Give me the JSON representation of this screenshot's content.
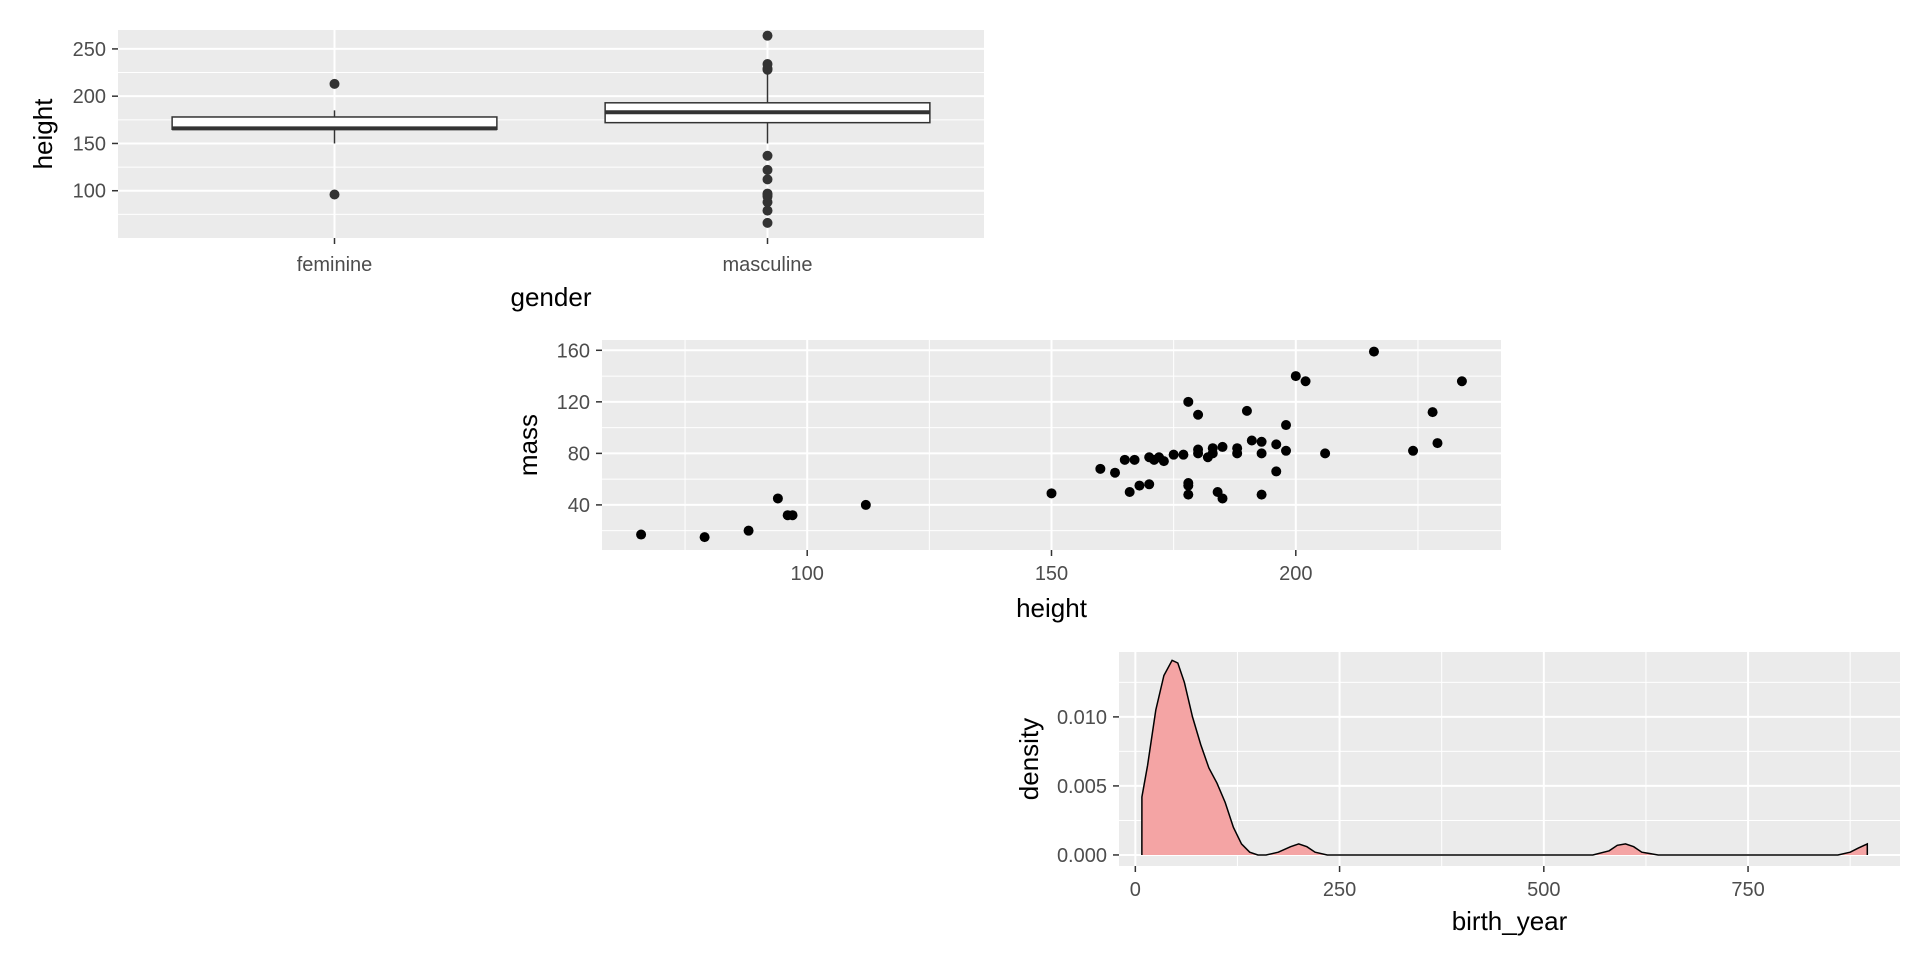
{
  "chart_data": [
    {
      "type": "boxplot",
      "xlabel": "gender",
      "ylabel": "height",
      "categories": [
        "feminine",
        "masculine"
      ],
      "ylim": [
        50,
        270
      ],
      "y_ticks": [
        100,
        150,
        200,
        250
      ],
      "boxes": [
        {
          "category": "feminine",
          "lower_whisker": 150,
          "q1": 165,
          "median": 166,
          "q3": 178,
          "upper_whisker": 185,
          "outliers": [
            96,
            213
          ]
        },
        {
          "category": "masculine",
          "lower_whisker": 150,
          "q1": 172,
          "median": 183,
          "q3": 193,
          "upper_whisker": 224,
          "outliers": [
            66,
            79,
            88,
            94,
            96,
            97,
            112,
            122,
            137,
            228,
            229,
            234,
            264
          ]
        }
      ],
      "grid": true
    },
    {
      "type": "scatter",
      "xlabel": "height",
      "ylabel": "mass",
      "xlim": [
        58,
        242
      ],
      "ylim": [
        5,
        168
      ],
      "x_ticks": [
        100,
        150,
        200
      ],
      "y_ticks": [
        40,
        80,
        120,
        160
      ],
      "points": [
        [
          66,
          17
        ],
        [
          79,
          15
        ],
        [
          88,
          20
        ],
        [
          94,
          45
        ],
        [
          96,
          32
        ],
        [
          97,
          32
        ],
        [
          112,
          40
        ],
        [
          150,
          49
        ],
        [
          160,
          68
        ],
        [
          163,
          65
        ],
        [
          165,
          75
        ],
        [
          166,
          50
        ],
        [
          167,
          75
        ],
        [
          168,
          55
        ],
        [
          170,
          56
        ],
        [
          170,
          77
        ],
        [
          171,
          75
        ],
        [
          172,
          77
        ],
        [
          173,
          74
        ],
        [
          175,
          79
        ],
        [
          177,
          79
        ],
        [
          178,
          120
        ],
        [
          178,
          48
        ],
        [
          178,
          55
        ],
        [
          178,
          57
        ],
        [
          180,
          110
        ],
        [
          180,
          80
        ],
        [
          180,
          83
        ],
        [
          182,
          77
        ],
        [
          183,
          80
        ],
        [
          183,
          84
        ],
        [
          184,
          50
        ],
        [
          185,
          45
        ],
        [
          185,
          85
        ],
        [
          188,
          80
        ],
        [
          188,
          84
        ],
        [
          190,
          113
        ],
        [
          191,
          90
        ],
        [
          193,
          89
        ],
        [
          193,
          80
        ],
        [
          193,
          48
        ],
        [
          196,
          87
        ],
        [
          196,
          66
        ],
        [
          198,
          102
        ],
        [
          198,
          82
        ],
        [
          200,
          140
        ],
        [
          202,
          136
        ],
        [
          206,
          80
        ],
        [
          216,
          159
        ],
        [
          224,
          82
        ],
        [
          228,
          112
        ],
        [
          229,
          88
        ],
        [
          234,
          136
        ]
      ],
      "grid": true
    },
    {
      "type": "area",
      "xlabel": "birth_year",
      "ylabel": "density",
      "xlim": [
        -20,
        936
      ],
      "ylim": [
        -0.0008,
        0.0147
      ],
      "x_ticks": [
        0,
        250,
        500,
        750
      ],
      "y_ticks": [
        0.0,
        0.005,
        0.01
      ],
      "y_tick_labels": [
        "0.000",
        "0.005",
        "0.010"
      ],
      "fill": "#f4a4a4",
      "stroke": "#000000",
      "x": [
        8,
        15,
        25,
        35,
        45,
        52,
        60,
        70,
        80,
        90,
        100,
        110,
        120,
        130,
        140,
        150,
        160,
        175,
        190,
        200,
        210,
        220,
        235,
        260,
        400,
        560,
        580,
        590,
        600,
        610,
        620,
        640,
        800,
        860,
        875,
        885,
        896
      ],
      "y": [
        0.0042,
        0.0065,
        0.0105,
        0.013,
        0.0141,
        0.0139,
        0.0125,
        0.01,
        0.008,
        0.0063,
        0.0052,
        0.0038,
        0.002,
        0.0008,
        0.0002,
        0.0,
        0.0,
        0.0002,
        0.0006,
        0.0008,
        0.0006,
        0.0002,
        0.0,
        0.0,
        0.0,
        0.0,
        0.0003,
        0.0007,
        0.0008,
        0.0006,
        0.0002,
        0.0,
        0.0,
        0.0,
        0.0002,
        0.0005,
        0.0008
      ],
      "grid": true
    }
  ]
}
